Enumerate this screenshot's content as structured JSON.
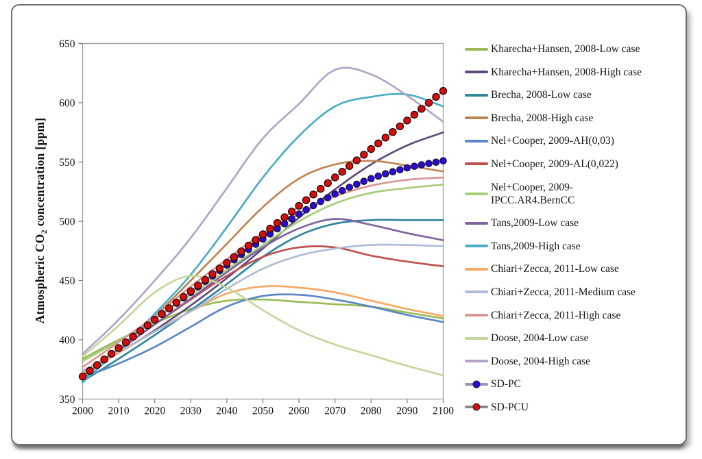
{
  "figure": {
    "ylabel_pre": "Atmospheric CO",
    "ylabel_sub": "2",
    "ylabel_post": " concentration [ppm]"
  },
  "chart_data": {
    "type": "line",
    "title": "",
    "xlabel": "",
    "ylabel": "Atmospheric CO2 concentration [ppm]",
    "xlim": [
      2000,
      2100
    ],
    "ylim": [
      350,
      650
    ],
    "x_ticks": [
      "2000",
      "2010",
      "2020",
      "2030",
      "2040",
      "2050",
      "2060",
      "2070",
      "2080",
      "2090",
      "2100"
    ],
    "y_ticks": [
      "350",
      "400",
      "450",
      "500",
      "550",
      "600",
      "650"
    ],
    "grid": false,
    "legend_position": "right",
    "x": [
      2000,
      2010,
      2020,
      2030,
      2040,
      2050,
      2060,
      2070,
      2080,
      2090,
      2100
    ],
    "series": [
      {
        "name": "Kharecha+Hansen, 2008-Low case",
        "color": "#9BBB59",
        "values": [
          384,
          400,
          414,
          426,
          433,
          434,
          432,
          430,
          428,
          423,
          418
        ]
      },
      {
        "name": "Kharecha+Hansen, 2008-High case",
        "color": "#5F497A",
        "values": [
          372,
          389,
          408,
          429,
          452,
          477,
          503,
          527,
          548,
          564,
          575
        ]
      },
      {
        "name": "Brecha, 2008-Low case",
        "color": "#31859C",
        "values": [
          365,
          384,
          404,
          425,
          447,
          470,
          488,
          498,
          501,
          501,
          501
        ]
      },
      {
        "name": "Brecha, 2008-High case",
        "color": "#C08450",
        "values": [
          368,
          392,
          420,
          450,
          481,
          512,
          536,
          548,
          551,
          547,
          542
        ]
      },
      {
        "name": "Nel+Cooper, 2009-AH(0,03)",
        "color": "#5B86C5",
        "values": [
          368,
          380,
          394,
          411,
          428,
          437,
          438,
          434,
          428,
          421,
          415
        ]
      },
      {
        "name": "Nel+Cooper, 2009-AL(0,022)",
        "color": "#BF504D",
        "values": [
          372,
          392,
          413,
          434,
          454,
          470,
          478,
          478,
          471,
          466,
          462
        ]
      },
      {
        "name": "Nel+Cooper, 2009-\nIPCC.AR4.BernCC",
        "color": "#A6CE79",
        "values": [
          382,
          399,
          418,
          438,
          459,
          480,
          500,
          515,
          524,
          528,
          531
        ]
      },
      {
        "name": "Tans,2009-Low case",
        "color": "#8064A2",
        "values": [
          370,
          391,
          413,
          435,
          457,
          478,
          494,
          502,
          497,
          490,
          484
        ]
      },
      {
        "name": "Tans,2009-High case",
        "color": "#4BACC6",
        "values": [
          364,
          392,
          422,
          455,
          495,
          537,
          572,
          597,
          605,
          607,
          597
        ]
      },
      {
        "name": "Chiari+Zecca, 2011-Low case",
        "color": "#F9A863",
        "values": [
          372,
          389,
          407,
          424,
          439,
          445,
          444,
          440,
          433,
          426,
          420
        ]
      },
      {
        "name": "Chiari+Zecca, 2011-Medium case",
        "color": "#AFBBD6",
        "values": [
          374,
          390,
          407,
          424,
          443,
          460,
          471,
          477,
          480,
          480,
          479
        ]
      },
      {
        "name": "Chiari+Zecca, 2011-High case",
        "color": "#D99694",
        "values": [
          377,
          398,
          420,
          445,
          468,
          490,
          507,
          521,
          530,
          535,
          537
        ]
      },
      {
        "name": "Doose, 2004-Low case",
        "color": "#C3D69B",
        "values": [
          386,
          412,
          440,
          454,
          444,
          425,
          408,
          396,
          387,
          378,
          370
        ]
      },
      {
        "name": "Doose, 2004-High case",
        "color": "#B3A2C7",
        "values": [
          388,
          417,
          450,
          486,
          528,
          570,
          599,
          628,
          624,
          606,
          584
        ]
      },
      {
        "name": "SD-PC",
        "color": "#2B0AD2",
        "marker": true,
        "line_color": "#9298bc",
        "marker_fill": "#2B0AD2",
        "marker_stroke": "#181836",
        "values": [
          369,
          393,
          417,
          440,
          463,
          485,
          506,
          523,
          536,
          545,
          551
        ]
      },
      {
        "name": "SD-PCU",
        "color": "#D20E0E",
        "marker": true,
        "line_color": "#8a8a8a",
        "marker_fill": "#D20E0E",
        "marker_stroke": "#2b0000",
        "values": [
          369,
          393,
          417,
          441,
          465,
          489,
          513,
          537,
          561,
          585,
          610
        ]
      }
    ]
  }
}
